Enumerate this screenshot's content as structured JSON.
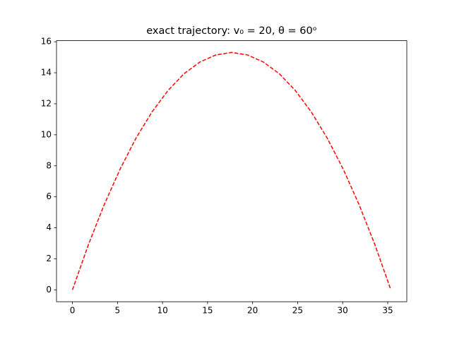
{
  "chart_data": {
    "type": "line",
    "title": "exact trajectory: v₀ = 20, θ = 60ᵒ",
    "x": [
      0,
      1.77,
      3.53,
      5.3,
      7.07,
      8.84,
      10.6,
      12.37,
      14.14,
      15.91,
      17.67,
      19.44,
      21.21,
      22.98,
      24.74,
      26.51,
      28.28,
      30.05,
      31.81,
      33.58,
      35.35
    ],
    "series": [
      {
        "color": "#ff0000",
        "dashed": true,
        "values": [
          0,
          2.91,
          5.5,
          7.8,
          9.8,
          11.48,
          12.85,
          13.93,
          14.69,
          15.15,
          15.31,
          15.15,
          14.69,
          13.93,
          12.86,
          11.48,
          9.79,
          7.8,
          5.51,
          2.91,
          0
        ]
      }
    ],
    "xlim": [
      -1.77,
      37.12
    ],
    "xticks": [
      0,
      5,
      10,
      15,
      20,
      25,
      30,
      35
    ],
    "ylim": [
      -0.765,
      16.07
    ],
    "yticks": [
      0,
      2,
      4,
      6,
      8,
      10,
      12,
      14,
      16
    ],
    "grid": false
  }
}
